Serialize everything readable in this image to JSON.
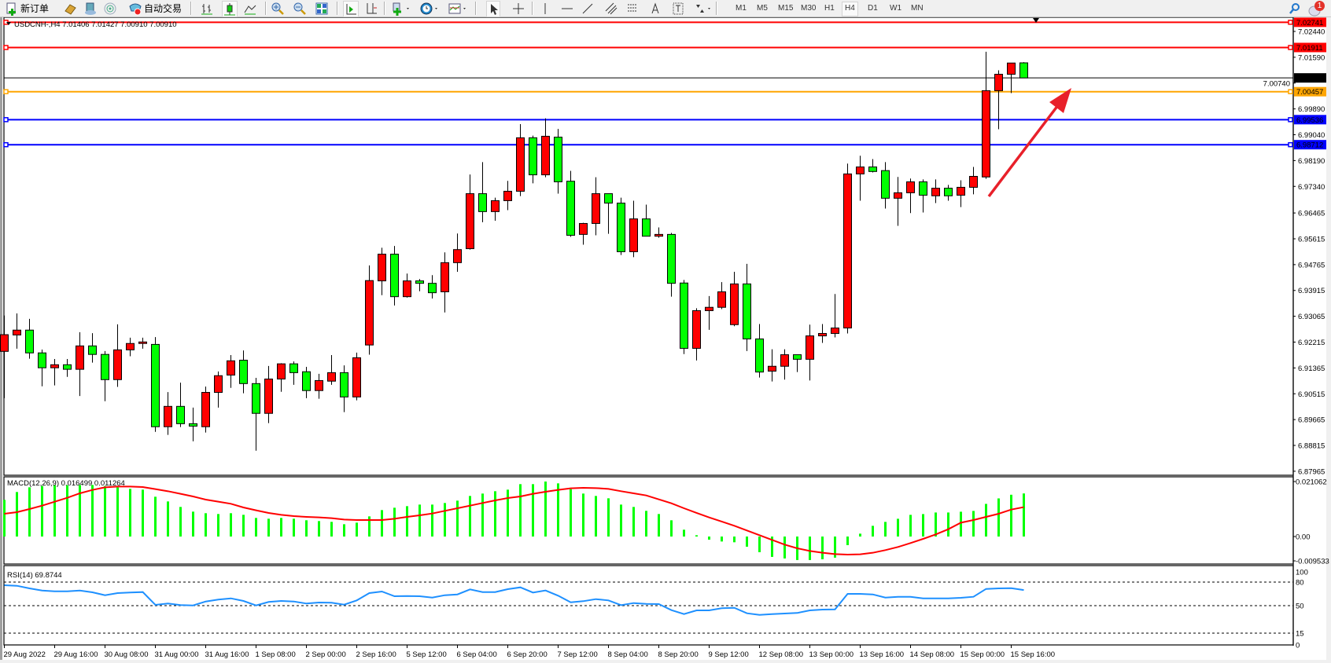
{
  "toolbar": {
    "new_order_label": "新订单",
    "auto_trading_label": "自动交易",
    "timeframes": [
      "M1",
      "M5",
      "M15",
      "M30",
      "H1",
      "H4",
      "D1",
      "W1",
      "MN"
    ],
    "active_timeframe": "H4",
    "notification_count": "1"
  },
  "chart": {
    "header": "USDCNH-,H4  7.01406 7.01427 7.00910 7.00910",
    "symbol": "USDCNH-",
    "timeframe": "H4",
    "ohlc_current": {
      "open": 7.01406,
      "high": 7.01427,
      "low": 7.0091,
      "close": 7.0091
    },
    "colors": {
      "bull": "#ff0000",
      "bear": "#00ff00",
      "outline": "#000000",
      "macd_hist": "#00ff00",
      "macd_signal": "#ff0000",
      "rsi": "#1e90ff",
      "arrow": "#e8202a"
    },
    "price_ticks": [
      "7.02440",
      "7.01590",
      "7.00740",
      "6.99890",
      "6.99040",
      "6.98190",
      "6.97340",
      "6.96465",
      "6.95615",
      "6.94765",
      "6.93915",
      "6.93065",
      "6.92215",
      "6.91365",
      "6.90515",
      "6.89665",
      "6.88815",
      "6.87965"
    ],
    "levels": [
      {
        "price": "7.02741",
        "color": "#ff0000"
      },
      {
        "price": "7.01911",
        "color": "#ff0000"
      },
      {
        "price": "7.00457",
        "color": "#ffa500"
      },
      {
        "price": "6.99536",
        "color": "#0000ff"
      },
      {
        "price": "6.98712",
        "color": "#0000ff"
      }
    ],
    "bid": {
      "price": "7.00910",
      "color": "#000000"
    },
    "time_labels": [
      "29 Aug 2022",
      "29 Aug 16:00",
      "30 Aug 08:00",
      "31 Aug 00:00",
      "31 Aug 16:00",
      "1 Sep 08:00",
      "2 Sep 00:00",
      "2 Sep 16:00",
      "5 Sep 12:00",
      "6 Sep 04:00",
      "6 Sep 20:00",
      "7 Sep 12:00",
      "8 Sep 04:00",
      "8 Sep 20:00",
      "9 Sep 12:00",
      "12 Sep 08:00",
      "13 Sep 00:00",
      "13 Sep 16:00",
      "14 Sep 08:00",
      "15 Sep 00:00",
      "15 Sep 16:00"
    ]
  },
  "chart_data": [
    {
      "type": "candlestick",
      "title": "USDCNH-,H4",
      "ylim": [
        6.87965,
        7.02741
      ],
      "format": "open,high,low,close",
      "candles": [
        [
          6.9191,
          6.9309,
          6.9037,
          6.9246
        ],
        [
          6.9245,
          6.9316,
          6.92,
          6.9261
        ],
        [
          6.9261,
          6.9298,
          6.9167,
          6.9186
        ],
        [
          6.9186,
          6.9197,
          6.9076,
          6.9137
        ],
        [
          6.9137,
          6.9166,
          6.9079,
          6.9147
        ],
        [
          6.9147,
          6.9166,
          6.9107,
          6.9132
        ],
        [
          6.9132,
          6.9254,
          6.9044,
          6.9209
        ],
        [
          6.9209,
          6.9251,
          6.9154,
          6.9181
        ],
        [
          6.9181,
          6.9192,
          6.9027,
          6.9098
        ],
        [
          6.9098,
          6.928,
          6.9074,
          6.9196
        ],
        [
          6.9196,
          6.9236,
          6.9175,
          6.9217
        ],
        [
          6.9217,
          6.9236,
          6.92,
          6.9222
        ],
        [
          6.9214,
          6.9238,
          6.8926,
          6.8943
        ],
        [
          6.8943,
          6.9057,
          6.8916,
          6.901
        ],
        [
          6.901,
          6.9088,
          6.8942,
          6.8953
        ],
        [
          6.8953,
          6.9006,
          6.8895,
          6.8945
        ],
        [
          6.8943,
          6.9075,
          6.8924,
          6.9056
        ],
        [
          6.9056,
          6.9125,
          6.9006,
          6.9111
        ],
        [
          6.9113,
          6.9179,
          6.9071,
          6.916
        ],
        [
          6.9162,
          6.9194,
          6.9053,
          6.9085
        ],
        [
          6.9085,
          6.9104,
          6.8864,
          6.8987
        ],
        [
          6.8987,
          6.9143,
          6.8955,
          6.91
        ],
        [
          6.91,
          6.9152,
          6.9058,
          6.915
        ],
        [
          6.915,
          6.9158,
          6.9081,
          6.9121
        ],
        [
          6.9124,
          6.914,
          6.9037,
          6.9062
        ],
        [
          6.9062,
          6.9117,
          6.9035,
          6.9095
        ],
        [
          6.9093,
          6.9179,
          6.9081,
          6.9121
        ],
        [
          6.9121,
          6.9145,
          6.8991,
          6.9041
        ],
        [
          6.9041,
          6.9187,
          6.903,
          6.917
        ],
        [
          6.9212,
          6.9474,
          6.918,
          6.9424
        ],
        [
          6.9423,
          6.9532,
          6.9376,
          6.9511
        ],
        [
          6.9511,
          6.9538,
          6.9342,
          6.9371
        ],
        [
          6.9371,
          6.9447,
          6.9368,
          6.9423
        ],
        [
          6.9423,
          6.9429,
          6.9389,
          6.9415
        ],
        [
          6.9415,
          6.9442,
          6.9365,
          6.9384
        ],
        [
          6.9387,
          6.9517,
          6.9319,
          6.9483
        ],
        [
          6.9483,
          6.9579,
          6.9453,
          6.9526
        ],
        [
          6.9529,
          6.9773,
          6.9526,
          6.971
        ],
        [
          6.971,
          6.9814,
          6.9616,
          6.9651
        ],
        [
          6.9651,
          6.9697,
          6.9621,
          6.9687
        ],
        [
          6.9687,
          6.9752,
          6.9656,
          6.9718
        ],
        [
          6.9718,
          6.9939,
          6.9702,
          6.9894
        ],
        [
          6.9894,
          6.9901,
          6.9744,
          6.9772
        ],
        [
          6.9772,
          6.9958,
          6.9764,
          6.9899
        ],
        [
          6.9896,
          6.9923,
          6.971,
          6.9749
        ],
        [
          6.9751,
          6.9785,
          6.9568,
          6.9573
        ],
        [
          6.9576,
          6.9614,
          6.9542,
          6.9612
        ],
        [
          6.9612,
          6.9764,
          6.9573,
          6.971
        ],
        [
          6.971,
          6.971,
          6.9578,
          6.9679
        ],
        [
          6.9679,
          6.9697,
          6.9508,
          6.9519
        ],
        [
          6.9519,
          6.9687,
          6.9501,
          6.9627
        ],
        [
          6.9627,
          6.9674,
          6.957,
          6.957
        ],
        [
          6.957,
          6.9599,
          6.9565,
          6.9576
        ],
        [
          6.9576,
          6.9581,
          6.9371,
          6.9415
        ],
        [
          6.9416,
          6.9426,
          6.9182,
          6.9201
        ],
        [
          6.9201,
          6.9333,
          6.9161,
          6.9325
        ],
        [
          6.9325,
          6.9373,
          6.9262,
          6.9336
        ],
        [
          6.9336,
          6.9419,
          6.933,
          6.9387
        ],
        [
          6.9279,
          6.9453,
          6.9274,
          6.9413
        ],
        [
          6.9413,
          6.9479,
          6.9192,
          6.9232
        ],
        [
          6.9232,
          6.9281,
          6.9105,
          6.9123
        ],
        [
          6.9126,
          6.9198,
          6.9092,
          6.9142
        ],
        [
          6.9142,
          6.9198,
          6.9098,
          6.918
        ],
        [
          6.918,
          6.918,
          6.9123,
          6.9165
        ],
        [
          6.9165,
          6.9279,
          6.9095,
          6.9242
        ],
        [
          6.9242,
          6.9281,
          6.9219,
          6.925
        ],
        [
          6.925,
          6.938,
          6.9237,
          6.9268
        ],
        [
          6.9268,
          6.9809,
          6.925,
          6.9775
        ],
        [
          6.9775,
          6.9835,
          6.9687,
          6.9798
        ],
        [
          6.9798,
          6.9824,
          6.978,
          6.9783
        ],
        [
          6.9786,
          6.9814,
          6.9661,
          6.9695
        ],
        [
          6.9695,
          6.9765,
          6.9604,
          6.9713
        ],
        [
          6.9713,
          6.976,
          6.9646,
          6.9749
        ],
        [
          6.9749,
          6.9757,
          6.9648,
          6.9705
        ],
        [
          6.9703,
          6.9757,
          6.9679,
          6.9728
        ],
        [
          6.9728,
          6.9739,
          6.9687,
          6.9703
        ],
        [
          6.9705,
          6.9754,
          6.9666,
          6.9731
        ],
        [
          6.9731,
          6.9798,
          6.9708,
          6.9767
        ],
        [
          6.9765,
          7.0177,
          6.9759,
          7.0049
        ],
        [
          7.0049,
          7.0116,
          6.9922,
          7.0103
        ],
        [
          7.0103,
          7.014,
          7.0041,
          7.014
        ],
        [
          7.01406,
          7.01427,
          7.0091,
          7.0091
        ]
      ]
    },
    {
      "type": "bar+line",
      "title": "MACD(12,26,9) 0.016499 0.011264",
      "label": "MACD(12,26,9)",
      "main_value": "0.016499",
      "signal_value": "0.011264",
      "ylim": [
        -0.009533,
        0.021062
      ],
      "ticks": [
        "0.021062",
        "0.00",
        "-0.009533"
      ],
      "histogram": [
        0.01404,
        0.01705,
        0.01885,
        0.01935,
        0.01966,
        0.01966,
        0.01975,
        0.01975,
        0.01935,
        0.01885,
        0.01825,
        0.01795,
        0.01524,
        0.01344,
        0.01133,
        0.00953,
        0.00893,
        0.00862,
        0.00893,
        0.00832,
        0.00712,
        0.00682,
        0.00712,
        0.00682,
        0.00622,
        0.00592,
        0.00562,
        0.00471,
        0.00531,
        0.00772,
        0.01013,
        0.01103,
        0.01163,
        0.01223,
        0.01223,
        0.01284,
        0.01374,
        0.01554,
        0.01645,
        0.01735,
        0.01795,
        0.02006,
        0.02006,
        0.02106,
        0.02036,
        0.01815,
        0.01645,
        0.01554,
        0.01464,
        0.01223,
        0.01133,
        0.00983,
        0.00862,
        0.00622,
        0.00261,
        0.0005,
        -0.0012,
        -0.0019,
        -0.0022,
        -0.0039,
        -0.006,
        -0.0078,
        -0.0084,
        -0.009,
        -0.009,
        -0.0087,
        -0.0081,
        -0.0033,
        0.0011,
        0.0041,
        0.0056,
        0.0068,
        0.0083,
        0.0086,
        0.0092,
        0.0092,
        0.0095,
        0.0098,
        0.0125,
        0.0146,
        0.016,
        0.016499
      ],
      "signal": [
        0.00872,
        0.00933,
        0.01053,
        0.01183,
        0.01334,
        0.01484,
        0.01655,
        0.01785,
        0.01885,
        0.01915,
        0.01915,
        0.01895,
        0.01815,
        0.01735,
        0.01635,
        0.01534,
        0.01414,
        0.01334,
        0.01254,
        0.01113,
        0.01003,
        0.00903,
        0.00832,
        0.00782,
        0.00752,
        0.00732,
        0.00702,
        0.00652,
        0.00632,
        0.00632,
        0.00632,
        0.00682,
        0.00752,
        0.00812,
        0.00882,
        0.00983,
        0.01083,
        0.01183,
        0.01284,
        0.01384,
        0.01474,
        0.01534,
        0.01635,
        0.01715,
        0.01785,
        0.01845,
        0.01865,
        0.01855,
        0.01825,
        0.01735,
        0.01655,
        0.01574,
        0.01424,
        0.01274,
        0.01083,
        0.00903,
        0.00732,
        0.00572,
        0.00411,
        0.00231,
        0.0005,
        -0.0013,
        -0.00311,
        -0.00451,
        -0.00552,
        -0.00622,
        -0.00672,
        -0.00692,
        -0.00682,
        -0.00622,
        -0.00521,
        -0.00401,
        -0.00251,
        -0.0009,
        0.0008,
        0.00281,
        0.00531,
        0.00632,
        0.00752,
        0.00872,
        0.01033,
        0.011264
      ]
    },
    {
      "type": "line",
      "title": "RSI(14) 69.8744",
      "label": "RSI(14)",
      "value": "69.8744",
      "ylim": [
        0,
        100
      ],
      "ticks": [
        "100",
        "80",
        "50",
        "15",
        "0"
      ],
      "levels": [
        80,
        50,
        15
      ],
      "values": [
        76,
        75.3,
        72,
        69.3,
        68.3,
        68.3,
        69.3,
        67,
        63.3,
        66,
        66.7,
        67.3,
        51,
        52.7,
        50.7,
        50.3,
        55.3,
        57.7,
        59.3,
        56,
        50.3,
        54.7,
        56,
        55.3,
        52.7,
        54,
        53.7,
        51.3,
        56.7,
        66,
        68,
        62,
        62.3,
        62,
        60.3,
        63.3,
        64.3,
        70.7,
        67.3,
        67.3,
        71,
        73.3,
        66.7,
        69.3,
        62.7,
        54.3,
        55.7,
        58.3,
        56.7,
        50.7,
        53.3,
        52.3,
        52,
        44.3,
        39.3,
        44,
        44,
        46.7,
        47.3,
        40.3,
        38.3,
        39.3,
        40,
        40.7,
        44,
        45,
        45.3,
        65,
        65,
        64.3,
        60.3,
        61.3,
        61.3,
        59.3,
        59.3,
        59.3,
        60,
        61.3,
        71.3,
        72,
        72.3,
        69.8744
      ]
    }
  ]
}
